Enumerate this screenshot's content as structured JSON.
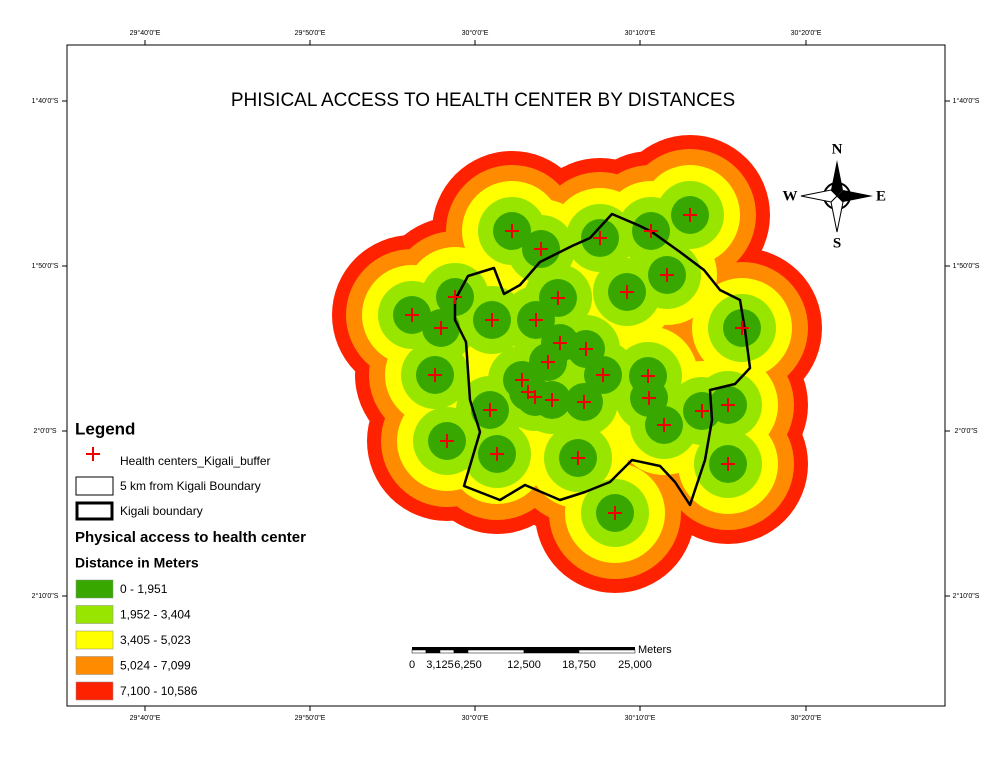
{
  "title": "PHISICAL ACCESS TO HEALTH CENTER BY DISTANCES",
  "graticule": {
    "top": [
      "29°40'0\"E",
      "29°50'0\"E",
      "30°0'0\"E",
      "30°10'0\"E",
      "30°20'0\"E"
    ],
    "bottom": [
      "29°40'0\"E",
      "29°50'0\"E",
      "30°0'0\"E",
      "30°10'0\"E",
      "30°20'0\"E"
    ],
    "left": [
      "1°40'0\"S",
      "1°50'0\"S",
      "2°0'0\"S",
      "2°10'0\"S"
    ],
    "right": [
      "1°40'0\"S",
      "1°50'0\"S",
      "2°0'0\"S",
      "2°10'0\"S"
    ]
  },
  "north_arrow": {
    "n": "N",
    "s": "S",
    "e": "E",
    "w": "W"
  },
  "legend": {
    "title": "Legend",
    "symbols": [
      "Health centers_Kigali_buffer",
      "5 km from Kigali Boundary",
      "Kigali boundary"
    ],
    "section": "Physical access to health center",
    "subtitle": "Distance in Meters",
    "classes": [
      {
        "label": "0 - 1,951",
        "color": "#38a800"
      },
      {
        "label": "1,952 - 3,404",
        "color": "#98e600"
      },
      {
        "label": "3,405 - 5,023",
        "color": "#ffff00"
      },
      {
        "label": "5,024 - 7,099",
        "color": "#ff8c00"
      },
      {
        "label": "7,100 - 10,586",
        "color": "#ff2200"
      }
    ]
  },
  "scale_bar": {
    "unit": "Meters",
    "labels": [
      "0",
      "3,125",
      "6,250",
      "12,500",
      "18,750",
      "25,000"
    ]
  }
}
